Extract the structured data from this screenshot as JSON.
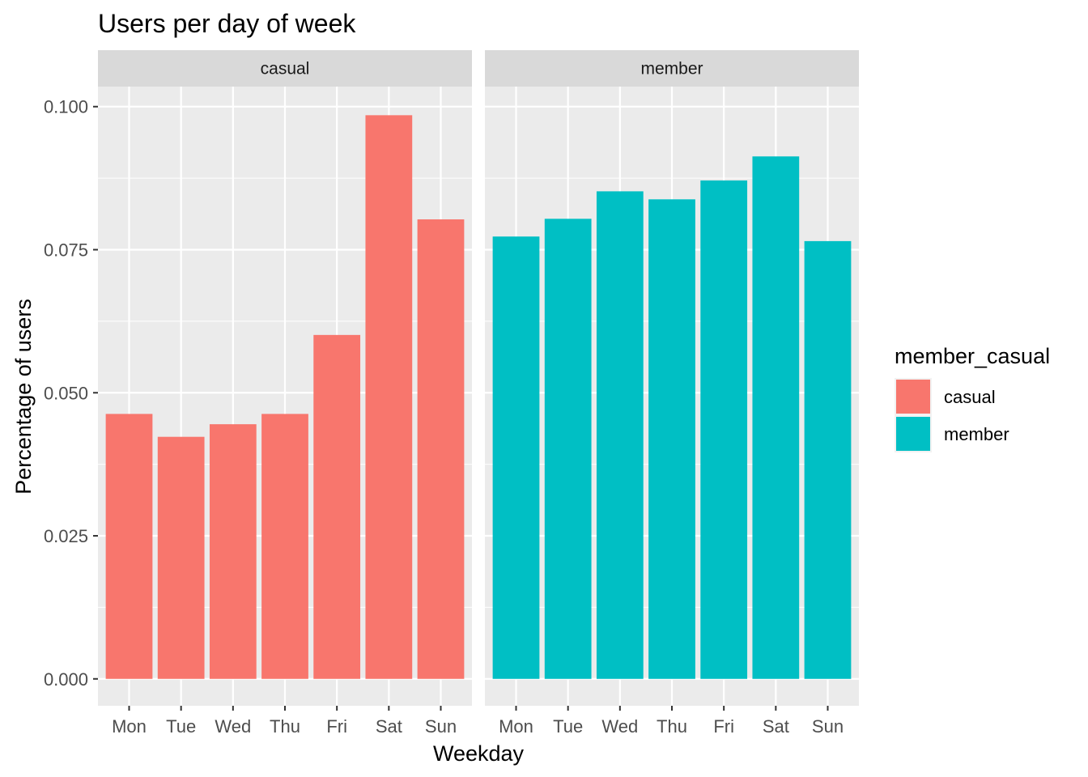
{
  "chart_data": {
    "type": "bar",
    "title": "Users per day of week",
    "xlabel": "Weekday",
    "ylabel": "Percentage of users",
    "categories": [
      "Mon",
      "Tue",
      "Wed",
      "Thu",
      "Fri",
      "Sat",
      "Sun"
    ],
    "facets": [
      {
        "name": "casual",
        "color": "#F8766D",
        "values": [
          0.0463,
          0.0423,
          0.0445,
          0.0463,
          0.0601,
          0.0985,
          0.0803
        ]
      },
      {
        "name": "member",
        "color": "#00BFC4",
        "values": [
          0.0773,
          0.0804,
          0.0852,
          0.0838,
          0.0871,
          0.0913,
          0.0765
        ]
      }
    ],
    "ylim": [
      -0.0047,
      0.1035
    ],
    "yticks": [
      0.0,
      0.025,
      0.05,
      0.075,
      0.1
    ],
    "ytick_labels": [
      "0.000",
      "0.025",
      "0.050",
      "0.075",
      "0.100"
    ],
    "grid": true,
    "legend": {
      "title": "member_casual",
      "position": "right",
      "entries": [
        {
          "label": "casual",
          "color": "#F8766D"
        },
        {
          "label": "member",
          "color": "#00BFC4"
        }
      ]
    }
  }
}
